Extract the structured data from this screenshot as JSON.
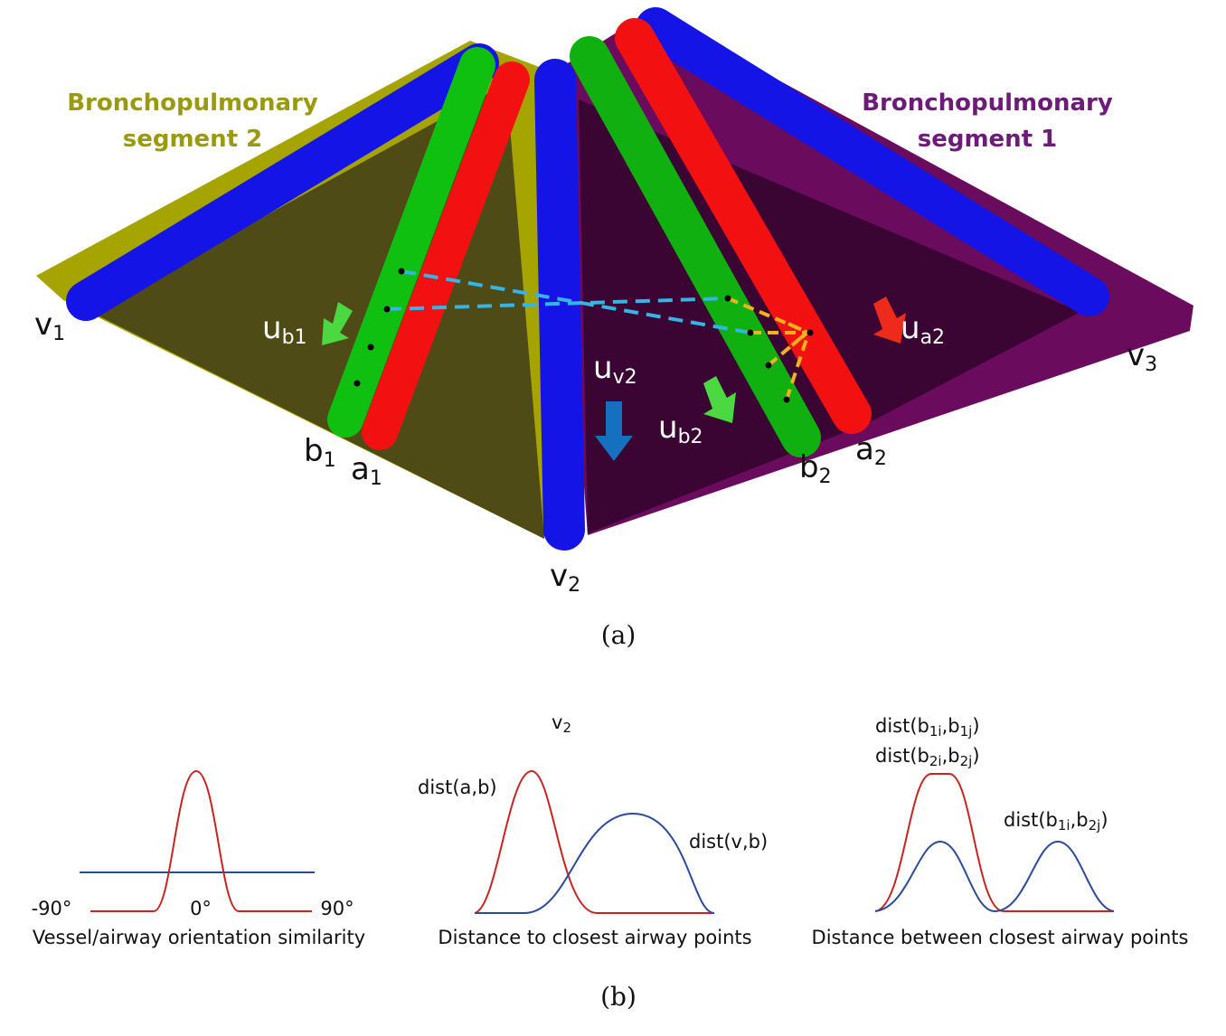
{
  "panel_a": {
    "segment_2_label": [
      "Bronchopulmonary",
      "segment 2"
    ],
    "segment_1_label": [
      "Bronchopulmonary",
      "segment 1"
    ],
    "points": {
      "v1": {
        "base": "v",
        "sub": "1"
      },
      "v2": {
        "base": "v",
        "sub": "2"
      },
      "v3": {
        "base": "v",
        "sub": "3"
      },
      "a1": {
        "base": "a",
        "sub": "1"
      },
      "a2": {
        "base": "a",
        "sub": "2"
      },
      "b1": {
        "base": "b",
        "sub": "1"
      },
      "b2": {
        "base": "b",
        "sub": "2"
      }
    },
    "directions": {
      "ub1": {
        "base": "u",
        "sub": "b1"
      },
      "ua2": {
        "base": "u",
        "sub": "a2"
      },
      "uv2": {
        "base": "u",
        "sub": "v2"
      },
      "ub2": {
        "base": "u",
        "sub": "b2"
      }
    },
    "caption": "(a)"
  },
  "panel_b": {
    "orientation": {
      "ticks": [
        "-90°",
        "0°",
        "90°"
      ],
      "caption": "Vessel/airway orientation similarity"
    },
    "distance": {
      "title": {
        "base": "v",
        "sub": "2"
      },
      "curve_1": "dist(a,b)",
      "curve_2": "dist(v,b)",
      "caption": "Distance to closest airway points"
    },
    "between": {
      "curve_1a": [
        "dist(b",
        "1i",
        ",b",
        "1j",
        ")"
      ],
      "curve_1b": [
        "dist(b",
        "2i",
        ",b",
        "2j",
        ")"
      ],
      "curve_2": [
        "dist(b",
        "1i",
        ",b",
        "2j",
        ")"
      ],
      "caption": "Distance between closest airway points"
    },
    "caption": "(b)"
  }
}
